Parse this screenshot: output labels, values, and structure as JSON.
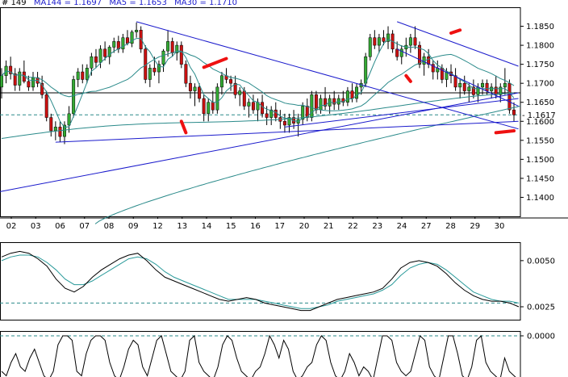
{
  "header": {
    "count_label": "# 149",
    "ma144": "MA144 = 1.1697",
    "ma5": "MA5 = 1.1653",
    "ma30": "MA30 = 1.1710"
  },
  "colors": {
    "up_candle": "#33aa33",
    "down_candle": "#cc1111",
    "ma": "#2a8a8a",
    "trend": "#1a1acc",
    "arrow": "#ee1111",
    "current_price": "#1a1acc",
    "osc_main": "#000000",
    "osc_signal": "#2a9a9a"
  },
  "chart_data": [
    {
      "type": "candlestick",
      "title": "",
      "price_axis": {
        "min": 1.135,
        "max": 1.19,
        "ticks": [
          "1.1850",
          "1.1800",
          "1.1750",
          "1.1700",
          "1.1650",
          "1.1600",
          "1.1550",
          "1.1500",
          "1.1450",
          "1.1400"
        ],
        "tick_values": [
          1.185,
          1.18,
          1.175,
          1.17,
          1.165,
          1.16,
          1.155,
          1.15,
          1.145,
          1.14
        ],
        "highlight_tick": "1.1700",
        "current_price_label": "1.1617",
        "current_price": 1.1617,
        "reference_level": 1.1675
      },
      "x_axis": {
        "labels": [
          "02",
          "03",
          "06",
          "07",
          "08",
          "09",
          "12",
          "13",
          "14",
          "15",
          "16",
          "17",
          "20",
          "21",
          "22",
          "23",
          "24",
          "27",
          "28",
          "29",
          "30"
        ]
      },
      "ohlc": [
        [
          1.169,
          1.174,
          1.166,
          1.172
        ],
        [
          1.172,
          1.176,
          1.17,
          1.1745
        ],
        [
          1.1745,
          1.177,
          1.171,
          1.1725
        ],
        [
          1.1725,
          1.174,
          1.168,
          1.1695
        ],
        [
          1.1695,
          1.174,
          1.168,
          1.173
        ],
        [
          1.173,
          1.176,
          1.17,
          1.1705
        ],
        [
          1.1705,
          1.172,
          1.168,
          1.169
        ],
        [
          1.169,
          1.173,
          1.168,
          1.1715
        ],
        [
          1.1715,
          1.173,
          1.169,
          1.17
        ],
        [
          1.17,
          1.172,
          1.166,
          1.167
        ],
        [
          1.167,
          1.168,
          1.16,
          1.161
        ],
        [
          1.161,
          1.162,
          1.156,
          1.1575
        ],
        [
          1.1575,
          1.16,
          1.155,
          1.1585
        ],
        [
          1.1585,
          1.16,
          1.1545,
          1.156
        ],
        [
          1.156,
          1.16,
          1.154,
          1.159
        ],
        [
          1.159,
          1.164,
          1.157,
          1.162
        ],
        [
          1.162,
          1.172,
          1.161,
          1.171
        ],
        [
          1.171,
          1.174,
          1.169,
          1.173
        ],
        [
          1.173,
          1.175,
          1.17,
          1.171
        ],
        [
          1.171,
          1.175,
          1.17,
          1.174
        ],
        [
          1.174,
          1.178,
          1.172,
          1.177
        ],
        [
          1.177,
          1.179,
          1.174,
          1.1755
        ],
        [
          1.1755,
          1.18,
          1.174,
          1.179
        ],
        [
          1.179,
          1.181,
          1.176,
          1.177
        ],
        [
          1.177,
          1.18,
          1.175,
          1.1795
        ],
        [
          1.1795,
          1.182,
          1.178,
          1.181
        ],
        [
          1.181,
          1.1825,
          1.178,
          1.179
        ],
        [
          1.179,
          1.183,
          1.178,
          1.182
        ],
        [
          1.182,
          1.184,
          1.18,
          1.1805
        ],
        [
          1.1805,
          1.184,
          1.1795,
          1.1835
        ],
        [
          1.1835,
          1.186,
          1.182,
          1.184
        ],
        [
          1.184,
          1.185,
          1.178,
          1.179
        ],
        [
          1.179,
          1.18,
          1.17,
          1.171
        ],
        [
          1.171,
          1.175,
          1.169,
          1.174
        ],
        [
          1.174,
          1.177,
          1.172,
          1.173
        ],
        [
          1.173,
          1.176,
          1.17,
          1.175
        ],
        [
          1.175,
          1.179,
          1.173,
          1.1785
        ],
        [
          1.1785,
          1.184,
          1.177,
          1.181
        ],
        [
          1.181,
          1.182,
          1.177,
          1.178
        ],
        [
          1.178,
          1.181,
          1.176,
          1.18
        ],
        [
          1.18,
          1.181,
          1.174,
          1.175
        ],
        [
          1.175,
          1.176,
          1.169,
          1.17
        ],
        [
          1.17,
          1.172,
          1.166,
          1.168
        ],
        [
          1.168,
          1.17,
          1.164,
          1.169
        ],
        [
          1.169,
          1.17,
          1.165,
          1.166
        ],
        [
          1.166,
          1.167,
          1.16,
          1.162
        ],
        [
          1.162,
          1.166,
          1.16,
          1.165
        ],
        [
          1.165,
          1.168,
          1.162,
          1.163
        ],
        [
          1.163,
          1.17,
          1.162,
          1.169
        ],
        [
          1.169,
          1.173,
          1.167,
          1.172
        ],
        [
          1.172,
          1.174,
          1.17,
          1.171
        ],
        [
          1.171,
          1.172,
          1.168,
          1.17
        ],
        [
          1.17,
          1.172,
          1.166,
          1.167
        ],
        [
          1.167,
          1.169,
          1.164,
          1.168
        ],
        [
          1.168,
          1.169,
          1.163,
          1.164
        ],
        [
          1.164,
          1.166,
          1.161,
          1.165
        ],
        [
          1.165,
          1.167,
          1.162,
          1.163
        ],
        [
          1.163,
          1.166,
          1.16,
          1.165
        ],
        [
          1.165,
          1.167,
          1.161,
          1.162
        ],
        [
          1.162,
          1.164,
          1.159,
          1.161
        ],
        [
          1.161,
          1.164,
          1.159,
          1.163
        ],
        [
          1.163,
          1.165,
          1.16,
          1.161
        ],
        [
          1.161,
          1.163,
          1.158,
          1.16
        ],
        [
          1.16,
          1.162,
          1.157,
          1.159
        ],
        [
          1.159,
          1.162,
          1.157,
          1.161
        ],
        [
          1.161,
          1.163,
          1.158,
          1.1595
        ],
        [
          1.1595,
          1.162,
          1.156,
          1.1605
        ],
        [
          1.1605,
          1.165,
          1.159,
          1.164
        ],
        [
          1.164,
          1.166,
          1.16,
          1.161
        ],
        [
          1.161,
          1.168,
          1.16,
          1.167
        ],
        [
          1.167,
          1.168,
          1.162,
          1.163
        ],
        [
          1.163,
          1.167,
          1.162,
          1.166
        ],
        [
          1.166,
          1.169,
          1.163,
          1.164
        ],
        [
          1.164,
          1.167,
          1.162,
          1.166
        ],
        [
          1.166,
          1.168,
          1.163,
          1.1645
        ],
        [
          1.1645,
          1.167,
          1.163,
          1.166
        ],
        [
          1.166,
          1.168,
          1.164,
          1.165
        ],
        [
          1.165,
          1.169,
          1.164,
          1.168
        ],
        [
          1.168,
          1.17,
          1.165,
          1.166
        ],
        [
          1.166,
          1.17,
          1.165,
          1.169
        ],
        [
          1.169,
          1.171,
          1.167,
          1.17
        ],
        [
          1.17,
          1.178,
          1.169,
          1.177
        ],
        [
          1.177,
          1.183,
          1.176,
          1.182
        ],
        [
          1.182,
          1.184,
          1.179,
          1.18
        ],
        [
          1.18,
          1.183,
          1.178,
          1.182
        ],
        [
          1.182,
          1.184,
          1.18,
          1.181
        ],
        [
          1.181,
          1.185,
          1.179,
          1.183
        ],
        [
          1.183,
          1.184,
          1.178,
          1.179
        ],
        [
          1.179,
          1.181,
          1.176,
          1.177
        ],
        [
          1.177,
          1.18,
          1.175,
          1.179
        ],
        [
          1.179,
          1.182,
          1.177,
          1.18
        ],
        [
          1.18,
          1.183,
          1.178,
          1.182
        ],
        [
          1.182,
          1.185,
          1.179,
          1.18
        ],
        [
          1.18,
          1.181,
          1.174,
          1.175
        ],
        [
          1.175,
          1.178,
          1.172,
          1.177
        ],
        [
          1.177,
          1.179,
          1.174,
          1.175
        ],
        [
          1.175,
          1.176,
          1.171,
          1.173
        ],
        [
          1.173,
          1.176,
          1.171,
          1.174
        ],
        [
          1.174,
          1.175,
          1.17,
          1.171
        ],
        [
          1.171,
          1.174,
          1.169,
          1.173
        ],
        [
          1.173,
          1.175,
          1.17,
          1.172
        ],
        [
          1.172,
          1.174,
          1.168,
          1.169
        ],
        [
          1.169,
          1.171,
          1.166,
          1.17
        ],
        [
          1.17,
          1.172,
          1.167,
          1.168
        ],
        [
          1.168,
          1.17,
          1.165,
          1.169
        ],
        [
          1.169,
          1.171,
          1.166,
          1.167
        ],
        [
          1.167,
          1.17,
          1.165,
          1.169
        ],
        [
          1.169,
          1.171,
          1.167,
          1.17
        ],
        [
          1.17,
          1.171,
          1.167,
          1.168
        ],
        [
          1.168,
          1.17,
          1.166,
          1.169
        ],
        [
          1.169,
          1.172,
          1.166,
          1.167
        ],
        [
          1.167,
          1.17,
          1.165,
          1.169
        ],
        [
          1.169,
          1.174,
          1.167,
          1.17
        ],
        [
          1.17,
          1.171,
          1.162,
          1.163
        ],
        [
          1.163,
          1.165,
          1.16,
          1.1617
        ]
      ]
    },
    {
      "type": "line",
      "title": "",
      "y_axis": {
        "min": 0.0018,
        "max": 0.006,
        "ticks": [
          "0.0050",
          "0.0025"
        ],
        "tick_values": [
          0.005,
          0.0025
        ]
      },
      "reference_level": 0.0027,
      "series": [
        {
          "values": [
            0.0052,
            0.0054,
            0.0055,
            0.0054,
            0.0051,
            0.0047,
            0.004,
            0.0035,
            0.0033,
            0.0036,
            0.0041,
            0.0045,
            0.0048,
            0.0051,
            0.0053,
            0.0054,
            0.005,
            0.0045,
            0.0041,
            0.0039,
            0.0037,
            0.0035,
            0.0033,
            0.0031,
            0.0029,
            0.0028,
            0.0029,
            0.003,
            0.0029,
            0.0027,
            0.0026,
            0.0025,
            0.0024,
            0.0023,
            0.0023,
            0.0025,
            0.0027,
            0.0029,
            0.003,
            0.0031,
            0.0032,
            0.0033,
            0.0035,
            0.004,
            0.0046,
            0.0049,
            0.005,
            0.0049,
            0.0047,
            0.0043,
            0.0038,
            0.0034,
            0.0031,
            0.0029,
            0.0028,
            0.0028,
            0.0027,
            0.0025
          ]
        },
        {
          "values": [
            0.005,
            0.0052,
            0.0053,
            0.0053,
            0.0052,
            0.0049,
            0.0045,
            0.004,
            0.0037,
            0.0037,
            0.0039,
            0.0042,
            0.0045,
            0.0048,
            0.0051,
            0.0052,
            0.0051,
            0.0048,
            0.0044,
            0.0041,
            0.0039,
            0.0037,
            0.0035,
            0.0033,
            0.0031,
            0.0029,
            0.0029,
            0.0029,
            0.0029,
            0.0028,
            0.0027,
            0.0026,
            0.0025,
            0.0024,
            0.0024,
            0.0025,
            0.0026,
            0.0028,
            0.0029,
            0.003,
            0.0031,
            0.0032,
            0.0034,
            0.0037,
            0.0042,
            0.0046,
            0.0048,
            0.0049,
            0.0048,
            0.0045,
            0.0041,
            0.0037,
            0.0033,
            0.0031,
            0.0029,
            0.0028,
            0.0028,
            0.0027
          ]
        }
      ]
    },
    {
      "type": "line",
      "title": "",
      "y_axis": {
        "ticks": [
          "0.0000"
        ],
        "tick_values": [
          0.0
        ]
      },
      "series": [
        {
          "values": [
            2,
            1,
            4,
            6,
            3,
            2,
            5,
            7,
            4,
            1,
            0,
            2,
            8,
            10,
            10,
            9,
            2,
            1,
            6,
            9,
            10,
            10,
            9,
            4,
            1,
            0,
            3,
            7,
            9,
            8,
            3,
            1,
            5,
            9,
            10,
            6,
            2,
            1,
            0,
            2,
            9,
            10,
            4,
            2,
            1,
            0,
            3,
            8,
            10,
            9,
            5,
            2,
            1,
            0,
            2,
            3,
            6,
            10,
            8,
            5,
            9,
            7,
            2,
            0,
            1,
            3,
            4,
            8,
            10,
            9,
            4,
            1,
            0,
            2,
            6,
            4,
            1,
            3,
            2,
            0,
            5,
            10,
            10,
            9,
            4,
            2,
            1,
            2,
            6,
            10,
            9,
            3,
            1,
            0,
            5,
            10,
            10,
            6,
            1,
            0,
            3,
            9,
            10,
            4,
            2,
            1,
            0,
            5,
            2,
            1,
            0
          ]
        }
      ]
    }
  ]
}
